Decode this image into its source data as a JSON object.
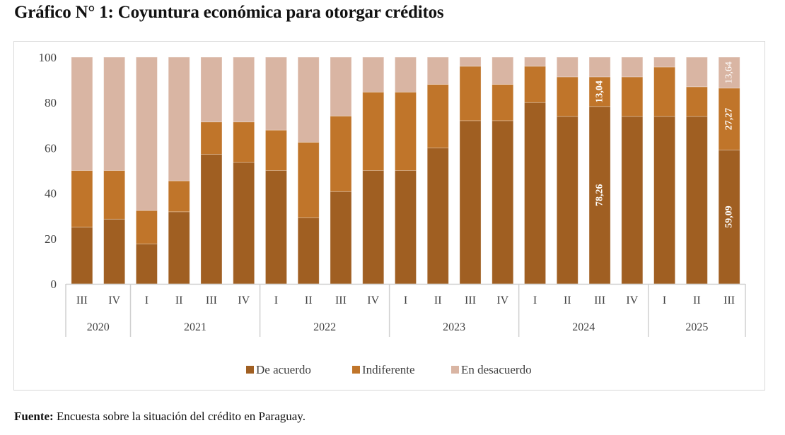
{
  "title": "Gráfico N° 1: Coyuntura económica para otorgar créditos",
  "source": {
    "label": "Fuente:",
    "text": " Encuesta sobre la situación del crédito en Paraguay."
  },
  "chart_data": {
    "type": "bar",
    "stacked": true,
    "title": "Gráfico N° 1: Coyuntura económica para otorgar créditos",
    "xlabel": "",
    "ylabel": "",
    "ylim": [
      0,
      100
    ],
    "yticks": [
      0,
      20,
      40,
      60,
      80,
      100
    ],
    "grid": false,
    "legend_position": "bottom",
    "categories": [
      "III",
      "IV",
      "I",
      "II",
      "III",
      "IV",
      "I",
      "II",
      "III",
      "IV",
      "I",
      "II",
      "III",
      "IV",
      "I",
      "II",
      "III",
      "IV",
      "I",
      "II",
      "III"
    ],
    "groups": [
      {
        "label": "2020",
        "count": 2
      },
      {
        "label": "2021",
        "count": 4
      },
      {
        "label": "2022",
        "count": 4
      },
      {
        "label": "2023",
        "count": 4
      },
      {
        "label": "2024",
        "count": 4
      },
      {
        "label": "2025",
        "count": 3
      }
    ],
    "series": [
      {
        "name": "De acuerdo",
        "color": "#A05F22",
        "values": [
          25,
          28.57,
          17.65,
          31.82,
          57.14,
          53.57,
          50,
          29.17,
          40.74,
          50,
          50,
          60,
          72,
          72,
          80,
          73.91,
          78.26,
          73.91,
          73.91,
          73.91,
          59.09
        ]
      },
      {
        "name": "Indiferente",
        "color": "#C0752A",
        "values": [
          25,
          21.43,
          14.71,
          13.64,
          14.29,
          17.86,
          17.86,
          33.33,
          33.33,
          34.62,
          34.62,
          28,
          24,
          16,
          16,
          17.39,
          13.04,
          17.39,
          21.74,
          13.04,
          27.27
        ]
      },
      {
        "name": "En desacuerdo",
        "color": "#D9B5A3",
        "values": [
          50,
          50,
          67.65,
          54.55,
          28.57,
          28.57,
          32.14,
          37.5,
          25.93,
          15.38,
          15.38,
          12,
          4,
          12,
          4,
          8.7,
          8.7,
          8.7,
          4.35,
          13.04,
          13.64
        ]
      }
    ],
    "data_labels": [
      {
        "category_index": 16,
        "series": "De acuerdo",
        "text": "78,26",
        "bold": true
      },
      {
        "category_index": 16,
        "series": "Indiferente",
        "text": "13,04",
        "bold": true
      },
      {
        "category_index": 20,
        "series": "De acuerdo",
        "text": "59,09",
        "bold": true
      },
      {
        "category_index": 20,
        "series": "Indiferente",
        "text": "27,27",
        "bold": true
      },
      {
        "category_index": 20,
        "series": "En desacuerdo",
        "text": "13,64",
        "bold": false
      }
    ]
  }
}
